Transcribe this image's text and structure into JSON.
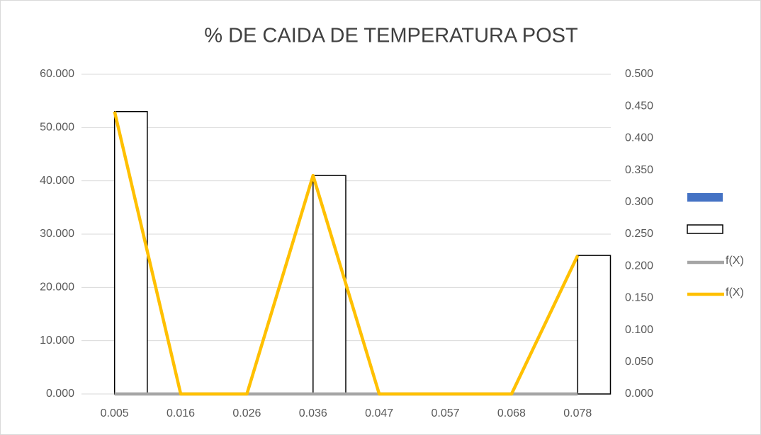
{
  "chart_data": {
    "type": "bar_line",
    "title": "% DE CAIDA DE TEMPERATURA POST",
    "categories": [
      "0.005",
      "0.016",
      "0.026",
      "0.036",
      "0.047",
      "0.057",
      "0.068",
      "0.078"
    ],
    "series": [
      {
        "name": null,
        "kind": "bar",
        "color": "#4472c4",
        "values": [
          0,
          0,
          0,
          0,
          0,
          0,
          0,
          0
        ]
      },
      {
        "name": null,
        "kind": "bar",
        "color": "#ffffff",
        "outline": "#000000",
        "values": [
          53,
          0,
          0,
          41,
          0,
          0,
          0,
          26
        ]
      },
      {
        "name": "f(X)",
        "kind": "line",
        "color": "#a5a5a5",
        "axis": "y2",
        "values": [
          0,
          0,
          0,
          0,
          0,
          0,
          0,
          0
        ]
      },
      {
        "name": "f(X)",
        "kind": "line",
        "color": "#ffc000",
        "values": [
          53,
          0,
          0,
          41,
          0,
          0,
          0,
          26
        ]
      }
    ],
    "ylim": [
      0,
      60
    ],
    "yticks": [
      {
        "value": 0,
        "label": "0.000"
      },
      {
        "value": 10,
        "label": "10.000"
      },
      {
        "value": 20,
        "label": "20.000"
      },
      {
        "value": 30,
        "label": "30.000"
      },
      {
        "value": 40,
        "label": "40.000"
      },
      {
        "value": 50,
        "label": "50.000"
      },
      {
        "value": 60,
        "label": "60.000"
      }
    ],
    "y2lim": [
      0,
      0.5
    ],
    "y2ticks": [
      {
        "value": 0,
        "label": "0.000"
      },
      {
        "value": 0.05,
        "label": "0.050"
      },
      {
        "value": 0.1,
        "label": "0.100"
      },
      {
        "value": 0.15,
        "label": "0.150"
      },
      {
        "value": 0.2,
        "label": "0.200"
      },
      {
        "value": 0.25,
        "label": "0.250"
      },
      {
        "value": 0.3,
        "label": "0.300"
      },
      {
        "value": 0.35,
        "label": "0.350"
      },
      {
        "value": 0.4,
        "label": "0.400"
      },
      {
        "value": 0.45,
        "label": "0.450"
      },
      {
        "value": 0.5,
        "label": "0.500"
      }
    ],
    "grid": true,
    "legend": "right"
  }
}
